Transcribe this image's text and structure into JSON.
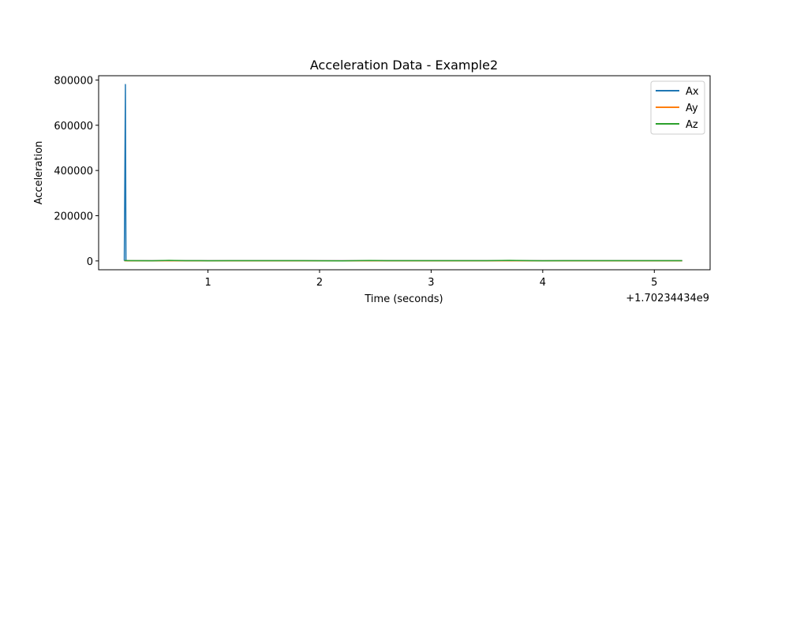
{
  "chart_data": {
    "type": "line",
    "title": "Acceleration Data - Example2",
    "xlabel": "Time (seconds)",
    "ylabel": "Acceleration",
    "x_offset_label": "+1.70234434e9",
    "xlim": [
      0.02,
      5.5
    ],
    "ylim": [
      -39000,
      819000
    ],
    "xticks": [
      1,
      2,
      3,
      4,
      5
    ],
    "xtick_labels": [
      "1",
      "2",
      "3",
      "4",
      "5"
    ],
    "yticks": [
      0,
      200000,
      400000,
      600000,
      800000
    ],
    "ytick_labels": [
      "0",
      "200000",
      "400000",
      "600000",
      "800000"
    ],
    "grid": false,
    "legend_position": "top-right",
    "series": [
      {
        "name": "Ax",
        "color": "#1f77b4",
        "x": [
          0.25,
          0.26,
          0.265,
          0.27,
          0.28,
          0.4,
          0.6,
          0.8,
          1.0,
          1.5,
          2.0,
          2.5,
          3.0,
          3.5,
          4.0,
          4.5,
          5.0,
          5.25
        ],
        "y": [
          1000,
          780000,
          2000,
          1500,
          800,
          1000,
          1200,
          900,
          1100,
          900,
          1000,
          1000,
          900,
          1000,
          1000,
          1000,
          1000,
          1000
        ]
      },
      {
        "name": "Ay",
        "color": "#ff7f0e",
        "x": [
          0.25,
          0.35,
          0.5,
          1.0,
          1.5,
          2.0,
          2.5,
          3.0,
          3.5,
          4.0,
          4.5,
          5.0,
          5.25
        ],
        "y": [
          500,
          800,
          600,
          500,
          700,
          500,
          600,
          500,
          700,
          500,
          600,
          500,
          500
        ]
      },
      {
        "name": "Az",
        "color": "#2ca02c",
        "x": [
          0.25,
          0.35,
          0.5,
          0.65,
          0.8,
          1.0,
          1.2,
          1.5,
          1.85,
          2.0,
          2.2,
          2.45,
          2.6,
          2.8,
          3.0,
          3.3,
          3.5,
          3.7,
          3.9,
          4.0,
          4.2,
          4.5,
          4.7,
          5.0,
          5.25
        ],
        "y": [
          1500,
          1000,
          500,
          2500,
          1200,
          800,
          1000,
          900,
          1200,
          600,
          400,
          1800,
          1000,
          900,
          1100,
          1000,
          900,
          2500,
          1000,
          800,
          1100,
          900,
          1200,
          1000,
          900
        ]
      }
    ]
  }
}
